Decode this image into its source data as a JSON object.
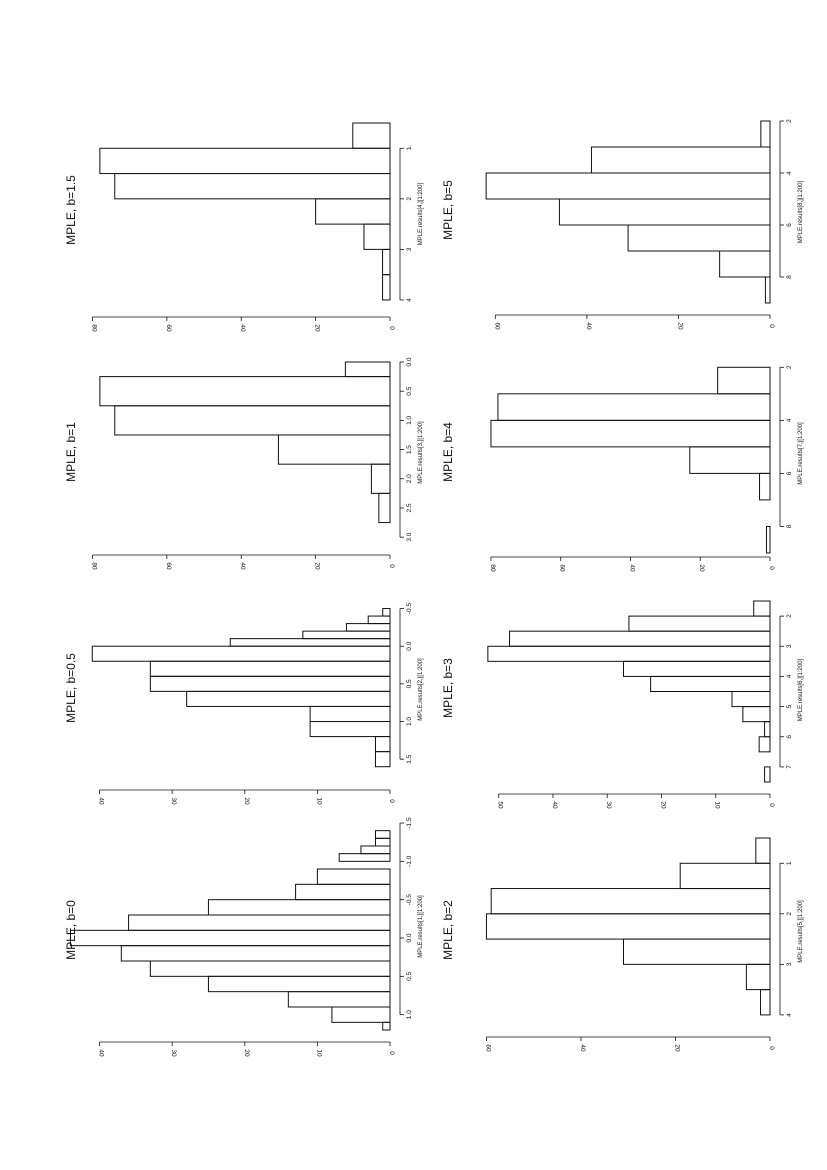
{
  "chart_data": [
    {
      "type": "bar",
      "title": "MPLE, b=0",
      "xlabel": "MPLE.results[1,][1:200]",
      "x_ticks": [
        "-1.5",
        "-1.0",
        "-0.5",
        "0.0",
        "0.5",
        "1.0"
      ],
      "y_ticks": [
        "0",
        "10",
        "20",
        "30",
        "40"
      ],
      "xlim": [
        -1.5,
        1.2
      ],
      "ylim": [
        0,
        42
      ],
      "bins": [
        {
          "x0": -1.4,
          "x1": -1.3,
          "count": 2
        },
        {
          "x0": -1.3,
          "x1": -1.2,
          "count": 2
        },
        {
          "x0": -1.2,
          "x1": -1.1,
          "count": 4
        },
        {
          "x0": -1.1,
          "x1": -1.0,
          "count": 7
        },
        {
          "x0": -0.9,
          "x1": -0.7,
          "count": 10
        },
        {
          "x0": -0.7,
          "x1": -0.5,
          "count": 13
        },
        {
          "x0": -0.5,
          "x1": -0.3,
          "count": 25
        },
        {
          "x0": -0.3,
          "x1": -0.1,
          "count": 36
        },
        {
          "x0": -0.1,
          "x1": 0.1,
          "count": 44
        },
        {
          "x0": 0.1,
          "x1": 0.3,
          "count": 37
        },
        {
          "x0": 0.3,
          "x1": 0.5,
          "count": 33
        },
        {
          "x0": 0.5,
          "x1": 0.7,
          "count": 25
        },
        {
          "x0": 0.7,
          "x1": 0.9,
          "count": 14
        },
        {
          "x0": 0.9,
          "x1": 1.1,
          "count": 8
        },
        {
          "x0": 1.1,
          "x1": 1.2,
          "count": 1
        }
      ]
    },
    {
      "type": "bar",
      "title": "MPLE, b=0.5",
      "xlabel": "MPLE.results[2,][1:200]",
      "x_ticks": [
        "-0.5",
        "0.0",
        "0.5",
        "1.0",
        "1.5"
      ],
      "y_ticks": [
        "0",
        "10",
        "20",
        "30",
        "40"
      ],
      "xlim": [
        -0.6,
        1.75
      ],
      "ylim": [
        0,
        42
      ],
      "bins": [
        {
          "x0": -0.5,
          "x1": -0.4,
          "count": 1
        },
        {
          "x0": -0.4,
          "x1": -0.3,
          "count": 3
        },
        {
          "x0": -0.3,
          "x1": -0.2,
          "count": 6
        },
        {
          "x0": -0.2,
          "x1": -0.1,
          "count": 12
        },
        {
          "x0": -0.1,
          "x1": 0.0,
          "count": 22
        },
        {
          "x0": 0.0,
          "x1": 0.2,
          "count": 41
        },
        {
          "x0": 0.2,
          "x1": 0.4,
          "count": 33
        },
        {
          "x0": 0.4,
          "x1": 0.6,
          "count": 33
        },
        {
          "x0": 0.6,
          "x1": 0.8,
          "count": 28
        },
        {
          "x0": 0.8,
          "x1": 1.0,
          "count": 11
        },
        {
          "x0": 1.0,
          "x1": 1.2,
          "count": 11
        },
        {
          "x0": 1.2,
          "x1": 1.4,
          "count": 2
        },
        {
          "x0": 1.4,
          "x1": 1.6,
          "count": 2
        }
      ]
    },
    {
      "type": "bar",
      "title": "MPLE, b=1",
      "xlabel": "MPLE.results[3,][1:200]",
      "x_ticks": [
        "0.0",
        "0.5",
        "1.0",
        "1.5",
        "2.0",
        "2.5",
        "3.0"
      ],
      "y_ticks": [
        "0",
        "20",
        "40",
        "60",
        "80"
      ],
      "xlim": [
        0,
        3.1
      ],
      "ylim": [
        0,
        82
      ],
      "bins": [
        {
          "x0": 0.0,
          "x1": 0.25,
          "count": 12
        },
        {
          "x0": 0.25,
          "x1": 0.75,
          "count": 78
        },
        {
          "x0": 0.75,
          "x1": 1.25,
          "count": 74
        },
        {
          "x0": 1.25,
          "x1": 1.75,
          "count": 30
        },
        {
          "x0": 1.75,
          "x1": 2.25,
          "count": 5
        },
        {
          "x0": 2.25,
          "x1": 2.75,
          "count": 3
        }
      ]
    },
    {
      "type": "bar",
      "title": "MPLE, b=1.5",
      "xlabel": "MPLE.results[4,][1:200]",
      "x_ticks": [
        "1",
        "2",
        "3",
        "4"
      ],
      "y_ticks": [
        "0",
        "20",
        "40",
        "60",
        "80"
      ],
      "xlim": [
        0.5,
        4.1
      ],
      "ylim": [
        0,
        82
      ],
      "bins": [
        {
          "x0": 0.5,
          "x1": 1.0,
          "count": 10
        },
        {
          "x0": 1.0,
          "x1": 1.5,
          "count": 78
        },
        {
          "x0": 1.5,
          "x1": 2.0,
          "count": 74
        },
        {
          "x0": 2.0,
          "x1": 2.5,
          "count": 20
        },
        {
          "x0": 2.5,
          "x1": 3.0,
          "count": 7
        },
        {
          "x0": 3.0,
          "x1": 3.5,
          "count": 2
        },
        {
          "x0": 3.5,
          "x1": 4.0,
          "count": 2
        }
      ]
    },
    {
      "type": "bar",
      "title": "MPLE, b=2",
      "xlabel": "MPLE.results[5,][1:200]",
      "x_ticks": [
        "1",
        "2",
        "3",
        "4"
      ],
      "y_ticks": [
        "0",
        "20",
        "40",
        "60"
      ],
      "xlim": [
        0.5,
        4.2
      ],
      "ylim": [
        0,
        62
      ],
      "bins": [
        {
          "x0": 0.5,
          "x1": 1.0,
          "count": 3
        },
        {
          "x0": 1.0,
          "x1": 1.5,
          "count": 19
        },
        {
          "x0": 1.5,
          "x1": 2.0,
          "count": 59
        },
        {
          "x0": 2.0,
          "x1": 2.5,
          "count": 60
        },
        {
          "x0": 2.5,
          "x1": 3.0,
          "count": 31
        },
        {
          "x0": 3.0,
          "x1": 3.5,
          "count": 5
        },
        {
          "x0": 3.5,
          "x1": 4.0,
          "count": 2
        }
      ]
    },
    {
      "type": "bar",
      "title": "MPLE, b=3",
      "xlabel": "MPLE.results[6,][1:200]",
      "x_ticks": [
        "2",
        "3",
        "4",
        "5",
        "6",
        "7"
      ],
      "y_ticks": [
        "0",
        "10",
        "20",
        "30",
        "40",
        "50"
      ],
      "xlim": [
        1.4,
        7.5
      ],
      "ylim": [
        0,
        54
      ],
      "bins": [
        {
          "x0": 1.5,
          "x1": 2.0,
          "count": 3
        },
        {
          "x0": 2.0,
          "x1": 2.5,
          "count": 26
        },
        {
          "x0": 2.5,
          "x1": 3.0,
          "count": 48
        },
        {
          "x0": 3.0,
          "x1": 3.5,
          "count": 52
        },
        {
          "x0": 3.5,
          "x1": 4.0,
          "count": 27
        },
        {
          "x0": 4.0,
          "x1": 4.5,
          "count": 22
        },
        {
          "x0": 4.5,
          "x1": 5.0,
          "count": 7
        },
        {
          "x0": 5.0,
          "x1": 5.5,
          "count": 5
        },
        {
          "x0": 5.5,
          "x1": 6.0,
          "count": 1
        },
        {
          "x0": 6.0,
          "x1": 6.5,
          "count": 2
        },
        {
          "x0": 7.0,
          "x1": 7.5,
          "count": 1
        }
      ]
    },
    {
      "type": "bar",
      "title": "MPLE, b=4",
      "xlabel": "MPLE.results[7,][1:200]",
      "x_ticks": [
        "2",
        "4",
        "6",
        "8"
      ],
      "y_ticks": [
        "0",
        "20",
        "40",
        "60",
        "80"
      ],
      "xlim": [
        1.8,
        8.7
      ],
      "ylim": [
        0,
        84
      ],
      "bins": [
        {
          "x0": 2,
          "x1": 3,
          "count": 15
        },
        {
          "x0": 3,
          "x1": 4,
          "count": 78
        },
        {
          "x0": 4,
          "x1": 5,
          "count": 80
        },
        {
          "x0": 5,
          "x1": 6,
          "count": 23
        },
        {
          "x0": 6,
          "x1": 7,
          "count": 3
        },
        {
          "x0": 8,
          "x1": 9,
          "count": 1
        }
      ]
    },
    {
      "type": "bar",
      "title": "MPLE, b=5",
      "xlabel": "MPLE.results[8,][1:200]",
      "x_ticks": [
        "2",
        "4",
        "6",
        "8"
      ],
      "y_ticks": [
        "0",
        "20",
        "40",
        "60"
      ],
      "xlim": [
        2,
        9
      ],
      "ylim": [
        0,
        64
      ],
      "bins": [
        {
          "x0": 2,
          "x1": 3,
          "count": 2
        },
        {
          "x0": 3,
          "x1": 4,
          "count": 39
        },
        {
          "x0": 4,
          "x1": 5,
          "count": 62
        },
        {
          "x0": 5,
          "x1": 6,
          "count": 46
        },
        {
          "x0": 6,
          "x1": 7,
          "count": 31
        },
        {
          "x0": 7,
          "x1": 8,
          "count": 11
        },
        {
          "x0": 8,
          "x1": 9,
          "count": 1
        }
      ]
    }
  ]
}
